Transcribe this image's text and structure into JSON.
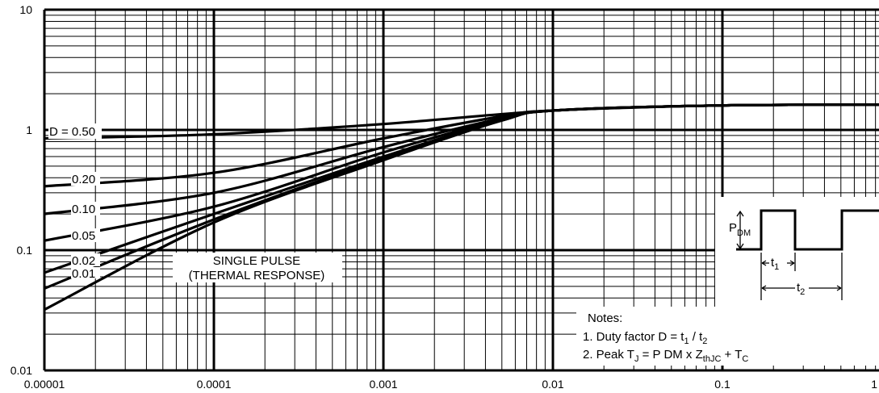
{
  "chart_data": {
    "type": "line",
    "title": "",
    "xlabel": "",
    "ylabel": "",
    "x_scale": "log",
    "y_scale": "log",
    "xlim": [
      1e-05,
      1
    ],
    "ylim": [
      0.01,
      10
    ],
    "grid": true,
    "x_ticks": [
      {
        "value": 1e-05,
        "label": "0.00001"
      },
      {
        "value": 0.0001,
        "label": "0.0001"
      },
      {
        "value": 0.001,
        "label": "0.001"
      },
      {
        "value": 0.01,
        "label": "0.01"
      },
      {
        "value": 0.1,
        "label": "0.1"
      },
      {
        "value": 1,
        "label": "1"
      }
    ],
    "y_ticks": [
      {
        "value": 0.01,
        "label": "0.01"
      },
      {
        "value": 0.1,
        "label": "0.1"
      },
      {
        "value": 1,
        "label": "1"
      },
      {
        "value": 10,
        "label": "10"
      }
    ],
    "series": [
      {
        "name": "D = 0.50",
        "x": [
          1e-05,
          0.0001,
          0.001,
          0.01,
          0.1,
          1
        ],
        "y": [
          0.85,
          0.92,
          1.12,
          1.45,
          1.6,
          1.62
        ]
      },
      {
        "name": "0.20",
        "x": [
          1e-05,
          0.0001,
          0.001,
          0.005,
          0.01,
          0.1,
          1
        ],
        "y": [
          0.34,
          0.44,
          0.85,
          1.3,
          1.45,
          1.6,
          1.62
        ]
      },
      {
        "name": "0.10",
        "x": [
          1e-05,
          0.0001,
          0.001,
          0.005,
          0.01,
          0.1,
          1
        ],
        "y": [
          0.2,
          0.3,
          0.72,
          1.25,
          1.45,
          1.6,
          1.62
        ]
      },
      {
        "name": "0.05",
        "x": [
          1e-05,
          0.0001,
          0.001,
          0.005,
          0.01,
          0.1,
          1
        ],
        "y": [
          0.12,
          0.23,
          0.65,
          1.22,
          1.45,
          1.6,
          1.62
        ]
      },
      {
        "name": "0.02",
        "x": [
          1e-05,
          0.0001,
          0.001,
          0.005,
          0.01,
          0.1,
          1
        ],
        "y": [
          0.065,
          0.2,
          0.6,
          1.2,
          1.45,
          1.6,
          1.62
        ]
      },
      {
        "name": "0.01",
        "x": [
          1e-05,
          0.0001,
          0.001,
          0.005,
          0.01,
          0.1,
          1
        ],
        "y": [
          0.048,
          0.18,
          0.58,
          1.2,
          1.45,
          1.6,
          1.62
        ]
      },
      {
        "name": "SINGLE PULSE (THERMAL RESPONSE)",
        "x": [
          1e-05,
          0.0001,
          0.001,
          0.005,
          0.01,
          0.1,
          1
        ],
        "y": [
          0.032,
          0.17,
          0.56,
          1.2,
          1.45,
          1.6,
          1.62
        ]
      }
    ],
    "curve_labels": [
      "D = 0.50",
      "0.20",
      "0.10",
      "0.05",
      "0.02",
      "0.01"
    ],
    "single_pulse_label": [
      "SINGLE PULSE",
      "(THERMAL RESPONSE)"
    ],
    "pulse_diagram": {
      "pdm": "P",
      "pdm_sub": "DM",
      "t1": "t",
      "t1_sub": "1",
      "t2": "t",
      "t2_sub": "2"
    },
    "notes": {
      "title": "Notes:",
      "line1": {
        "prefix": "1. Duty factor D = t",
        "s1": "1",
        "mid": " / t",
        "s2": "2"
      },
      "line2": {
        "prefix": "2. Peak T",
        "s1": "J",
        "eq": " = P ",
        "s2": "DM",
        "x": " x  Z",
        "s3": "thJC",
        "plus": "  + T",
        "s4": "C"
      }
    }
  }
}
